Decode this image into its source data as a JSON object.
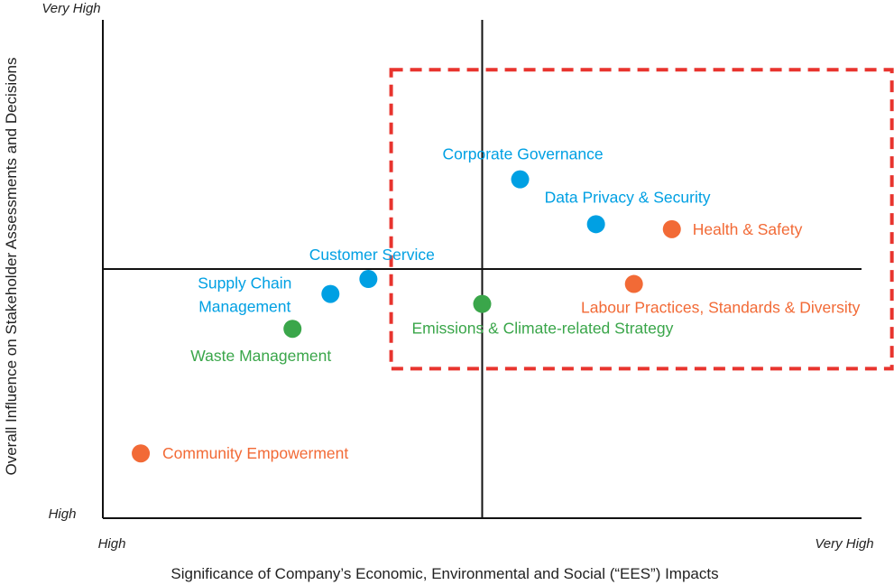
{
  "chart_data": {
    "type": "scatter",
    "title": "",
    "xlabel": "Significance of Company’s Economic, Environmental and Social (“EES”) Impacts",
    "ylabel": "Overall Influence on Stakeholder Assessments and Decisions",
    "x_ticks": {
      "low": "High",
      "high": "Very High"
    },
    "y_ticks": {
      "low": "High",
      "high": "Very High"
    },
    "xlim": [
      0,
      10
    ],
    "ylim": [
      0,
      10
    ],
    "quadrant_dividers": {
      "x": 5,
      "y": 5
    },
    "highlight_region": {
      "x": [
        3.8,
        10.4
      ],
      "y": [
        3.0,
        9.0
      ],
      "color": "#e8342e",
      "style": "dashed"
    },
    "colors": {
      "blue": "#00a0e3",
      "orange": "#f26a36",
      "green": "#3aa64a"
    },
    "points": [
      {
        "label": "Corporate Governance",
        "x": 5.5,
        "y": 6.8,
        "color": "#00a0e3"
      },
      {
        "label": "Data Privacy & Security",
        "x": 6.5,
        "y": 5.9,
        "color": "#00a0e3"
      },
      {
        "label": "Health & Safety",
        "x": 7.5,
        "y": 5.8,
        "color": "#f26a36"
      },
      {
        "label": "Customer Service",
        "x": 3.5,
        "y": 4.8,
        "color": "#00a0e3"
      },
      {
        "label": "Supply Chain Management",
        "lines": [
          "Supply Chain",
          "Management"
        ],
        "x": 3.0,
        "y": 4.5,
        "color": "#00a0e3"
      },
      {
        "label": "Labour Practices, Standards & Diversity",
        "x": 7.0,
        "y": 4.7,
        "color": "#f26a36"
      },
      {
        "label": "Emissions & Climate-related Strategy",
        "x": 5.0,
        "y": 4.3,
        "color": "#3aa64a"
      },
      {
        "label": "Waste Management",
        "x": 2.5,
        "y": 3.8,
        "color": "#3aa64a"
      },
      {
        "label": "Community Empowerment",
        "x": 0.5,
        "y": 1.3,
        "color": "#f26a36"
      }
    ]
  }
}
